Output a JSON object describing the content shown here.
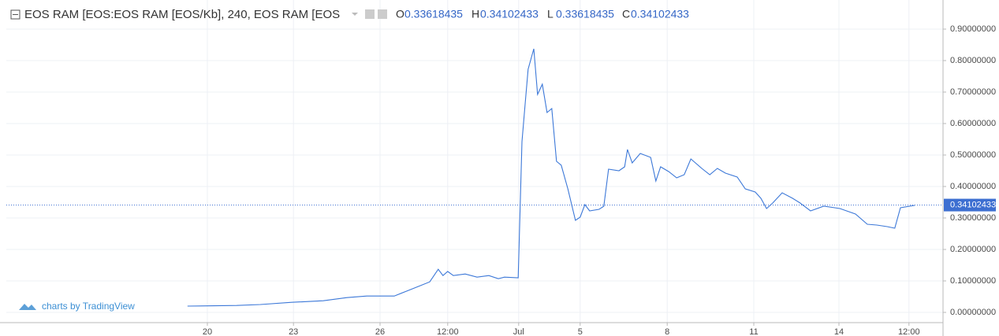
{
  "chart_data": {
    "type": "line",
    "title": "EOS RAM [EOS:EOS RAM [EOS/Kb], 240, EOS RAM [EOS",
    "ohlc": [
      {
        "label": "O",
        "value": 0.33618435
      },
      {
        "label": "H",
        "value": 0.34102433
      },
      {
        "label": "L",
        "value": 0.33618435
      },
      {
        "label": "C",
        "value": 0.34102433
      }
    ],
    "watermark": "charts by TradingView",
    "last_price": 0.34102433,
    "last_price_color": "#3d6fd1",
    "grid": true,
    "xlim": [
      0,
      198
    ],
    "xticks": [
      {
        "value": 42.5,
        "label": "20"
      },
      {
        "value": 60.7,
        "label": "23"
      },
      {
        "value": 79,
        "label": "26"
      },
      {
        "value": 93.3,
        "label": "12:00"
      },
      {
        "value": 108.3,
        "label": "Jul"
      },
      {
        "value": 121.3,
        "label": "5"
      },
      {
        "value": 139.7,
        "label": "8"
      },
      {
        "value": 158,
        "label": "11"
      },
      {
        "value": 176,
        "label": "14"
      },
      {
        "value": 190.8,
        "label": "12:00"
      }
    ],
    "ylim": [
      -0.0325,
      0.9925
    ],
    "yticks": [
      {
        "value": 0,
        "label": "0.00000000"
      },
      {
        "value": 0.1,
        "label": "0.10000000"
      },
      {
        "value": 0.2,
        "label": "0.20000000"
      },
      {
        "value": 0.3,
        "label": "0.30000000"
      },
      {
        "value": 0.4,
        "label": "0.40000000"
      },
      {
        "value": 0.5,
        "label": "0.50000000"
      },
      {
        "value": 0.6,
        "label": "0.60000000"
      },
      {
        "value": 0.7,
        "label": "0.70000000"
      },
      {
        "value": 0.8,
        "label": "0.80000000"
      },
      {
        "value": 0.9,
        "label": "0.90000000"
      }
    ],
    "series": [
      {
        "color": "#3c78d8",
        "x": [
          38.3,
          48.7,
          53.7,
          60.3,
          67,
          72,
          76.2,
          82,
          84.5,
          87,
          89.5,
          91.3,
          92.3,
          93.3,
          94.5,
          97,
          99.5,
          102,
          104,
          105.3,
          108.2,
          109,
          109.7,
          110.3,
          111.5,
          112.3,
          113.3,
          114.3,
          115.3,
          116.3,
          117.3,
          118.7,
          120.3,
          121.3,
          122.3,
          123.3,
          125.3,
          126.3,
          127.3,
          129.5,
          130.7,
          131.3,
          132.3,
          134,
          136.2,
          137.3,
          138.3,
          140,
          141.7,
          143.3,
          144.7,
          147,
          148.7,
          150.3,
          152,
          154.5,
          156.2,
          158.3,
          159.5,
          160.7,
          162,
          164,
          166.2,
          167.8,
          170,
          172.8,
          176.2,
          179.5,
          182,
          184,
          186.2,
          187.8,
          189,
          192
        ],
        "values": [
          0.02,
          0.022,
          0.025,
          0.032,
          0.037,
          0.047,
          0.052,
          0.052,
          0.067,
          0.082,
          0.097,
          0.137,
          0.117,
          0.13,
          0.117,
          0.122,
          0.112,
          0.117,
          0.107,
          0.112,
          0.11,
          0.5425,
          0.6675,
          0.7725,
          0.8375,
          0.6925,
          0.725,
          0.635,
          0.6475,
          0.48,
          0.4675,
          0.3925,
          0.2925,
          0.3025,
          0.3425,
          0.3225,
          0.3275,
          0.3375,
          0.455,
          0.45,
          0.4625,
          0.5175,
          0.475,
          0.505,
          0.4925,
          0.4175,
          0.4625,
          0.4475,
          0.4275,
          0.4375,
          0.4875,
          0.4575,
          0.4375,
          0.4575,
          0.4425,
          0.43,
          0.3925,
          0.3825,
          0.3625,
          0.33,
          0.3475,
          0.38,
          0.3625,
          0.3475,
          0.3225,
          0.3375,
          0.33,
          0.3125,
          0.28,
          0.2775,
          0.2725,
          0.2675,
          0.3325,
          0.34
        ]
      }
    ]
  }
}
